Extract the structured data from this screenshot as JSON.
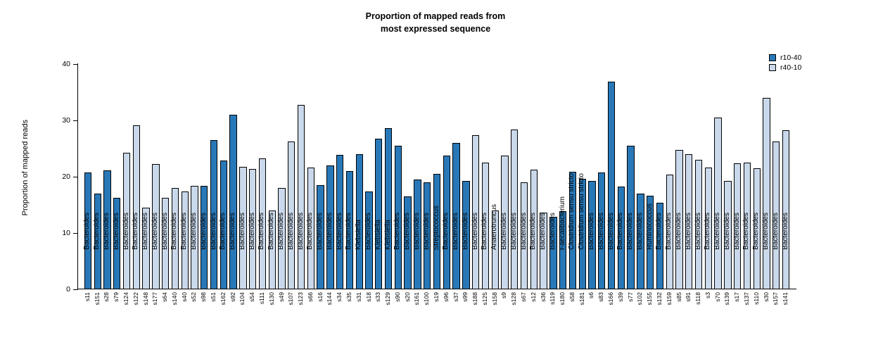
{
  "figure": {
    "title_line1": "Proportion of mapped reads from",
    "title_line2": "most expressed sequence"
  },
  "chart_data": {
    "type": "bar",
    "title": "Proportion of mapped reads from most expressed sequence",
    "xlabel": "",
    "ylabel": "Proportion of mapped reads",
    "ylim": [
      0,
      40
    ],
    "yticks": [
      0,
      10,
      20,
      30,
      40
    ],
    "grid": false,
    "legend": {
      "position": "top-right",
      "entries": [
        {
          "label": "r10-40",
          "color": "#2878b8"
        },
        {
          "label": "r40-10",
          "color": "#c9d8ea"
        }
      ]
    },
    "bar_border_color": "#000000",
    "bars": [
      {
        "sample": "s11",
        "genus": "Bacteroides",
        "value": 20.7,
        "series": "r10-40"
      },
      {
        "sample": "s151",
        "genus": "Bacteroides",
        "value": 17.0,
        "series": "r10-40"
      },
      {
        "sample": "s28",
        "genus": "Bacteroides",
        "value": 21.1,
        "series": "r10-40"
      },
      {
        "sample": "s79",
        "genus": "Bacteroides",
        "value": 16.3,
        "series": "r10-40"
      },
      {
        "sample": "s124",
        "genus": "Bacteroides",
        "value": 24.2,
        "series": "r40-10"
      },
      {
        "sample": "s122",
        "genus": "Bacteroides",
        "value": 29.1,
        "series": "r40-10"
      },
      {
        "sample": "s148",
        "genus": "Bacteroides",
        "value": 14.5,
        "series": "r40-10"
      },
      {
        "sample": "s177",
        "genus": "Bacteroides",
        "value": 22.3,
        "series": "r40-10"
      },
      {
        "sample": "s64",
        "genus": "Bacteroides",
        "value": 16.2,
        "series": "r40-10"
      },
      {
        "sample": "s140",
        "genus": "Bacteroides",
        "value": 18.0,
        "series": "r40-10"
      },
      {
        "sample": "s40",
        "genus": "Bacteroides",
        "value": 17.4,
        "series": "r40-10"
      },
      {
        "sample": "s52",
        "genus": "Bacteroides",
        "value": 18.4,
        "series": "r40-10"
      },
      {
        "sample": "s98",
        "genus": "Bacteroides",
        "value": 18.4,
        "series": "r10-40"
      },
      {
        "sample": "s51",
        "genus": "Bacteroides",
        "value": 26.5,
        "series": "r10-40"
      },
      {
        "sample": "s162",
        "genus": "Bacteroides",
        "value": 22.9,
        "series": "r10-40"
      },
      {
        "sample": "s92",
        "genus": "Bacteroides",
        "value": 31.0,
        "series": "r10-40"
      },
      {
        "sample": "s104",
        "genus": "Bacteroides",
        "value": 21.8,
        "series": "r40-10"
      },
      {
        "sample": "s54",
        "genus": "Bacteroides",
        "value": 21.4,
        "series": "r40-10"
      },
      {
        "sample": "s111",
        "genus": "Bacteroides",
        "value": 23.2,
        "series": "r40-10"
      },
      {
        "sample": "s130",
        "genus": "Bacteroides",
        "value": 14.0,
        "series": "r40-10"
      },
      {
        "sample": "s49",
        "genus": "Bacteroides",
        "value": 18.0,
        "series": "r40-10"
      },
      {
        "sample": "s107",
        "genus": "Bacteroides",
        "value": 26.2,
        "series": "r40-10"
      },
      {
        "sample": "s123",
        "genus": "Bacteroides",
        "value": 32.8,
        "series": "r40-10"
      },
      {
        "sample": "s66",
        "genus": "Bacteroides",
        "value": 21.6,
        "series": "r40-10"
      },
      {
        "sample": "s16",
        "genus": "Bacteroides",
        "value": 18.5,
        "series": "r10-40"
      },
      {
        "sample": "s144",
        "genus": "Bacteroides",
        "value": 22.0,
        "series": "r10-40"
      },
      {
        "sample": "s34",
        "genus": "Bacteroides",
        "value": 23.9,
        "series": "r10-40"
      },
      {
        "sample": "s35",
        "genus": "Bacteroides",
        "value": 21.0,
        "series": "r10-40"
      },
      {
        "sample": "s31",
        "genus": "Klebsiella",
        "value": 24.0,
        "series": "r10-40"
      },
      {
        "sample": "s18",
        "genus": "Bacteroides",
        "value": 17.4,
        "series": "r10-40"
      },
      {
        "sample": "s33",
        "genus": "Klebsiella",
        "value": 26.8,
        "series": "r10-40"
      },
      {
        "sample": "s129",
        "genus": "Klebsiella",
        "value": 28.6,
        "series": "r10-40"
      },
      {
        "sample": "s90",
        "genus": "Bacteroides",
        "value": 25.5,
        "series": "r10-40"
      },
      {
        "sample": "s20",
        "genus": "Bacteroides",
        "value": 16.5,
        "series": "r10-40"
      },
      {
        "sample": "s161",
        "genus": "Bacteroides",
        "value": 19.5,
        "series": "r10-40"
      },
      {
        "sample": "s100",
        "genus": "Bacteroides",
        "value": 19.0,
        "series": "r10-40"
      },
      {
        "sample": "s19",
        "genus": "Streptococcus",
        "value": 20.5,
        "series": "r10-40"
      },
      {
        "sample": "s96",
        "genus": "Bacteroides",
        "value": 23.8,
        "series": "r10-40"
      },
      {
        "sample": "s37",
        "genus": "Bacteroides",
        "value": 26.0,
        "series": "r10-40"
      },
      {
        "sample": "s99",
        "genus": "Bacteroides",
        "value": 19.3,
        "series": "r10-40"
      },
      {
        "sample": "s188",
        "genus": "Bacteroides",
        "value": 27.4,
        "series": "r40-10"
      },
      {
        "sample": "s125",
        "genus": "Bacteroides",
        "value": 22.5,
        "series": "r40-10"
      },
      {
        "sample": "s158",
        "genus": "Anaerotruncus",
        "value": 14.0,
        "series": "r40-10"
      },
      {
        "sample": "s9",
        "genus": "Bacteroides",
        "value": 23.8,
        "series": "r40-10"
      },
      {
        "sample": "s128",
        "genus": "Bacteroides",
        "value": 28.4,
        "series": "r40-10"
      },
      {
        "sample": "s67",
        "genus": "Bacteroides",
        "value": 19.0,
        "series": "r40-10"
      },
      {
        "sample": "s12",
        "genus": "Bacteroides",
        "value": 21.2,
        "series": "r40-10"
      },
      {
        "sample": "s36",
        "genus": "Bacteroides",
        "value": 13.6,
        "series": "r40-10"
      },
      {
        "sample": "s119",
        "genus": "Bacteroides",
        "value": 12.9,
        "series": "r10-40"
      },
      {
        "sample": "s180",
        "genus": "Faecalibacterium",
        "value": 13.9,
        "series": "r10-40"
      },
      {
        "sample": "s58",
        "genus": "Clostridium sensu stricto",
        "value": 20.9,
        "series": "r10-40"
      },
      {
        "sample": "s181",
        "genus": "Clostridium sensu stricto",
        "value": 19.6,
        "series": "r10-40"
      },
      {
        "sample": "s6",
        "genus": "Bacteroides",
        "value": 19.3,
        "series": "r10-40"
      },
      {
        "sample": "s83",
        "genus": "Bacteroides",
        "value": 20.7,
        "series": "r10-40"
      },
      {
        "sample": "s166",
        "genus": "Bacteroides",
        "value": 36.9,
        "series": "r10-40"
      },
      {
        "sample": "s39",
        "genus": "Bacteroides",
        "value": 18.2,
        "series": "r10-40"
      },
      {
        "sample": "s77",
        "genus": "Bacteroides",
        "value": 25.5,
        "series": "r10-40"
      },
      {
        "sample": "s102",
        "genus": "Bacteroides",
        "value": 17.0,
        "series": "r10-40"
      },
      {
        "sample": "s155",
        "genus": "Ruminococcus",
        "value": 16.6,
        "series": "r10-40"
      },
      {
        "sample": "s132",
        "genus": "Bacteroides",
        "value": 15.4,
        "series": "r10-40"
      },
      {
        "sample": "s159",
        "genus": "Bacteroides",
        "value": 20.4,
        "series": "r40-10"
      },
      {
        "sample": "s85",
        "genus": "Bacteroides",
        "value": 24.8,
        "series": "r40-10"
      },
      {
        "sample": "s91",
        "genus": "Bacteroides",
        "value": 24.0,
        "series": "r40-10"
      },
      {
        "sample": "s118",
        "genus": "Bacteroides",
        "value": 23.0,
        "series": "r40-10"
      },
      {
        "sample": "s3",
        "genus": "Bacteroides",
        "value": 21.6,
        "series": "r40-10"
      },
      {
        "sample": "s70",
        "genus": "Bacteroides",
        "value": 30.5,
        "series": "r40-10"
      },
      {
        "sample": "s139",
        "genus": "Bacteroides",
        "value": 19.2,
        "series": "r40-10"
      },
      {
        "sample": "s17",
        "genus": "Bacteroides",
        "value": 22.4,
        "series": "r40-10"
      },
      {
        "sample": "s137",
        "genus": "Bacteroides",
        "value": 22.5,
        "series": "r40-10"
      },
      {
        "sample": "s110",
        "genus": "Bacteroides",
        "value": 21.5,
        "series": "r40-10"
      },
      {
        "sample": "s30",
        "genus": "Bacteroides",
        "value": 34.0,
        "series": "r40-10"
      },
      {
        "sample": "s157",
        "genus": "Bacteroides",
        "value": 26.3,
        "series": "r40-10"
      },
      {
        "sample": "s141",
        "genus": "Bacteroides",
        "value": 28.3,
        "series": "r40-10"
      }
    ]
  }
}
